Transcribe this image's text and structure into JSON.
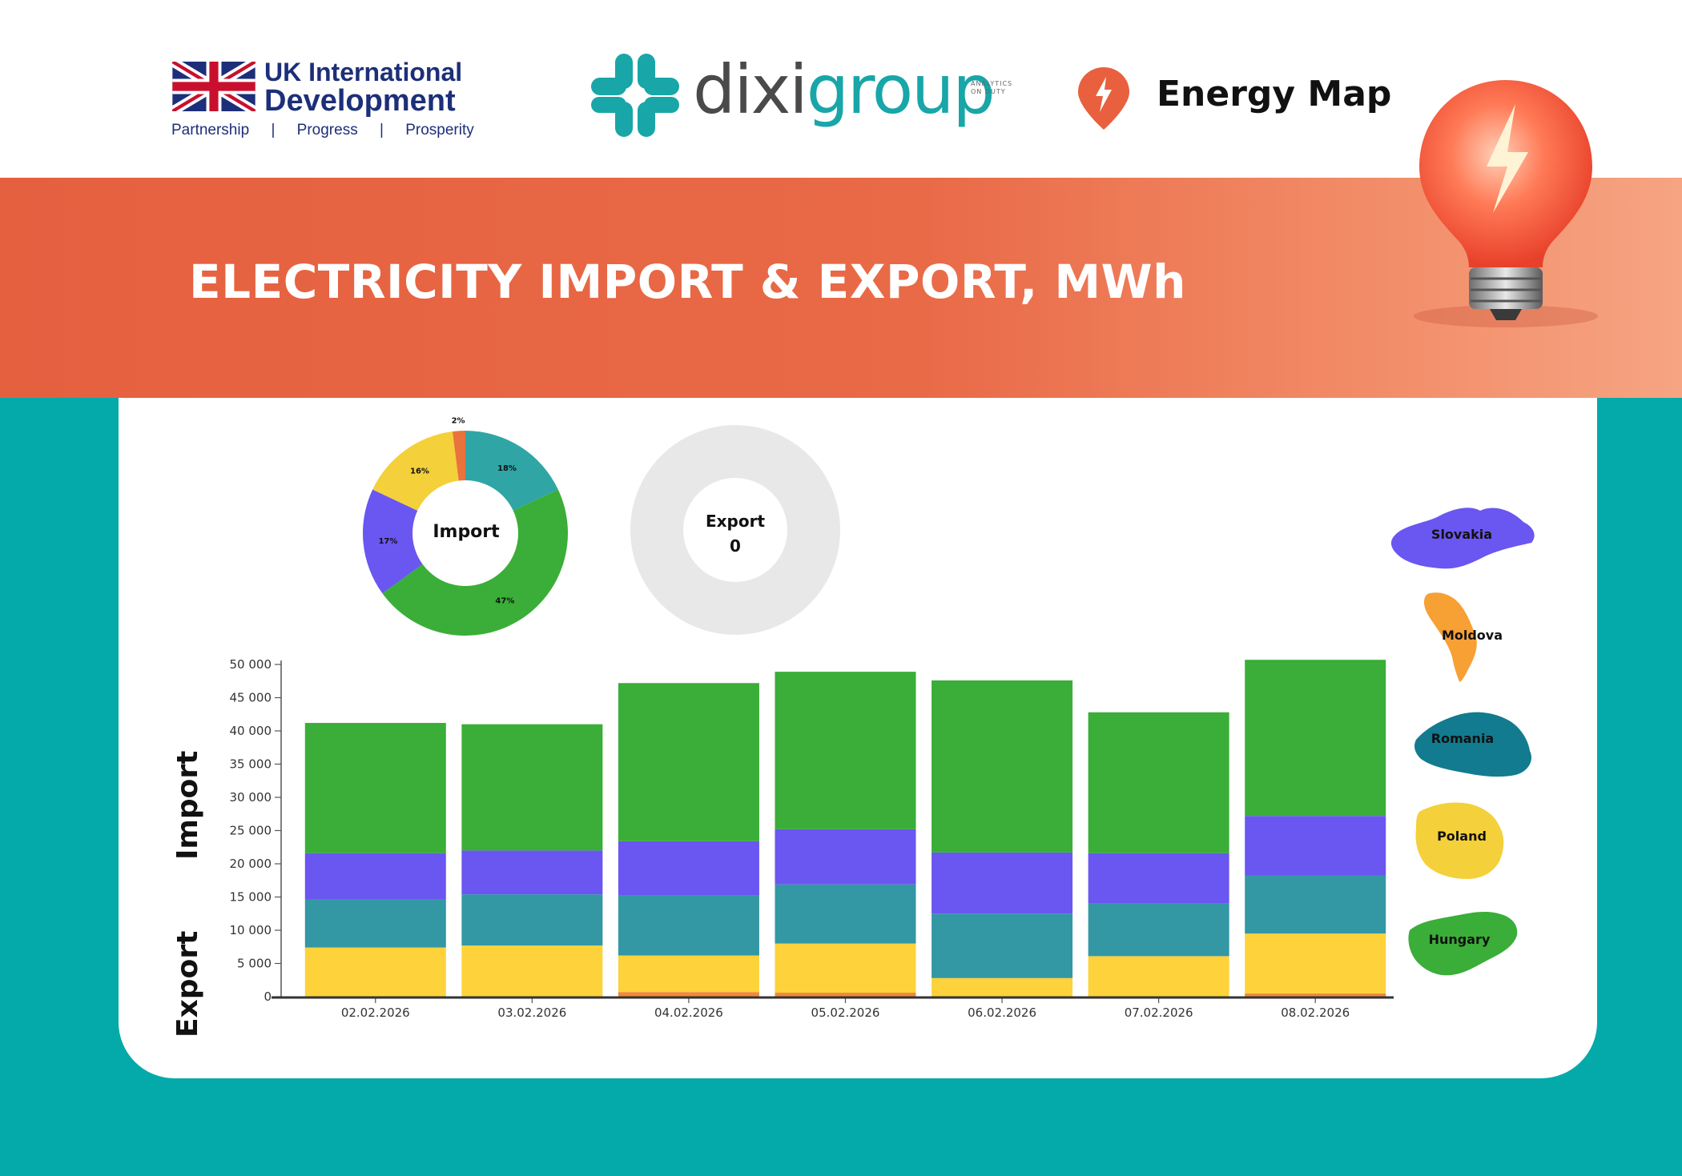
{
  "header": {
    "uk": {
      "line1": "UK International",
      "line2": "Development",
      "tagline": [
        "Partnership",
        "|",
        "Progress",
        "|",
        "Prosperity"
      ]
    },
    "dixi": {
      "word_a": "dixi",
      "word_b": "group",
      "tag_line1": "ANALYTICS",
      "tag_line2": "ON DUTY"
    },
    "energy_map": "Energy Map"
  },
  "banner": {
    "title": "ELECTRICITY IMPORT & EXPORT, MWh"
  },
  "colors": {
    "slovakia": "#6a56f0",
    "moldova": "#f7a034",
    "romania": "#127b8f",
    "poland": "#f4d03a",
    "hungary": "#3aae38",
    "import_teal": "#2fa6a5",
    "bar_teal": "#3397a4",
    "bar_yellow": "#fdd23a",
    "bar_orange": "#f08a3a",
    "orange_slice": "#e8733d",
    "band": "#e96a47",
    "teal_bg": "#04aaa9"
  },
  "donuts": {
    "import": {
      "label": "Import",
      "slices": [
        {
          "name": "Teal",
          "value": 18,
          "label": "18%",
          "color": "#2fa6a5"
        },
        {
          "name": "Hungary",
          "value": 47,
          "label": "47%",
          "color": "#3aae38"
        },
        {
          "name": "Slovakia",
          "value": 17,
          "label": "17%",
          "color": "#6a56f0"
        },
        {
          "name": "Poland",
          "value": 16,
          "label": "16%",
          "color": "#f4d03a"
        },
        {
          "name": "Orange",
          "value": 2,
          "label": "2%",
          "color": "#e8733d"
        }
      ]
    },
    "export": {
      "label": "Export",
      "value": "0"
    }
  },
  "chart_data": {
    "type": "bar",
    "stacked": true,
    "categories": [
      "02.02.2026",
      "03.02.2026",
      "04.02.2026",
      "05.02.2026",
      "06.02.2026",
      "07.02.2026",
      "08.02.2026"
    ],
    "series": [
      {
        "color": "#f08a3a",
        "values": [
          0,
          0,
          700,
          600,
          0,
          0,
          500
        ]
      },
      {
        "color": "#fdd23a",
        "values": [
          7400,
          7700,
          5500,
          7400,
          2800,
          6100,
          9000
        ]
      },
      {
        "color": "#3397a4",
        "values": [
          7300,
          7700,
          9000,
          8900,
          9700,
          7900,
          8700
        ]
      },
      {
        "color": "#6a56f0",
        "values": [
          6900,
          6600,
          8200,
          8300,
          9200,
          7600,
          9000
        ]
      },
      {
        "color": "#3aae38",
        "values": [
          19600,
          19000,
          23800,
          23700,
          25900,
          21200,
          23500
        ]
      }
    ],
    "yticks": [
      "0",
      "5 000",
      "10 000",
      "15 000",
      "20 000",
      "25 000",
      "30 000",
      "35 000",
      "40 000",
      "45 000",
      "50 000"
    ],
    "ylim": [
      0,
      50000
    ],
    "ylabel_top": "Import",
    "ylabel_bottom": "Export",
    "grid": false
  },
  "legend": {
    "countries": [
      "Slovakia",
      "Moldova",
      "Romania",
      "Poland",
      "Hungary"
    ]
  }
}
